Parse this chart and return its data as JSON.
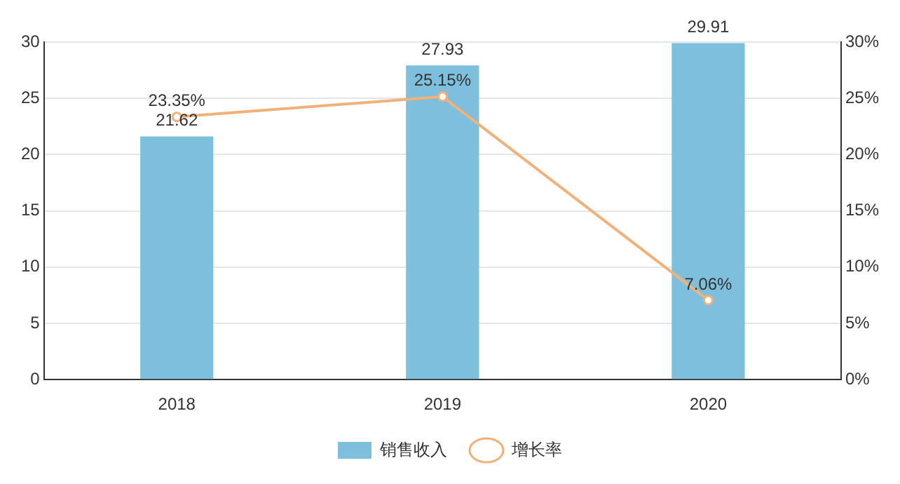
{
  "chart_data": {
    "type": "bar",
    "categories": [
      "2018",
      "2019",
      "2020"
    ],
    "series": [
      {
        "name": "销售收入",
        "color": "#7dbfdc",
        "values": [
          21.62,
          27.93,
          29.91
        ],
        "value_labels": [
          "21.62",
          "27.93",
          "29.91"
        ]
      },
      {
        "name": "增长率",
        "type": "line",
        "axis": "y2",
        "color": "#f0b27a",
        "marker": "circle",
        "values": [
          23.35,
          25.15,
          7.06
        ],
        "value_labels": [
          "23.35%",
          "25.15%",
          "7.06%"
        ]
      }
    ],
    "ylim": [
      0,
      30
    ],
    "yticks": [
      0,
      5,
      10,
      15,
      20,
      25,
      30
    ],
    "y2lim": [
      0,
      30
    ],
    "y2ticks": [
      {
        "value": 0,
        "label": "0%"
      },
      {
        "value": 5,
        "label": "5%"
      },
      {
        "value": 10,
        "label": "10%"
      },
      {
        "value": 15,
        "label": "15%"
      },
      {
        "value": 20,
        "label": "20%"
      },
      {
        "value": 25,
        "label": "25%"
      },
      {
        "value": 30,
        "label": "30%"
      }
    ],
    "grid": "y",
    "legend": "bottom"
  }
}
